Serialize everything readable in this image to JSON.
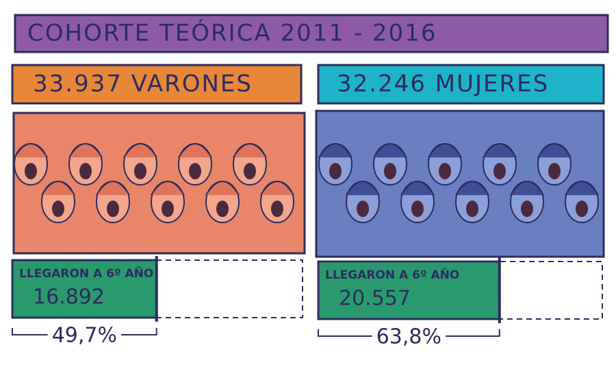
{
  "title": "COHORTE TEÓRICA 2011 - 2016",
  "groups": [
    {
      "header": "33.937 VARONES",
      "reached_label": "LLEGARON A 6º AÑO",
      "reached": "16.892",
      "percent": {
        "value": 49.7,
        "label": "49,7%"
      }
    },
    {
      "header": "32.246 MUJERES",
      "reached_label": "LLEGARON A 6º AÑO",
      "reached": "20.557",
      "percent": {
        "value": 63.8,
        "label": "63,8%"
      }
    }
  ]
}
